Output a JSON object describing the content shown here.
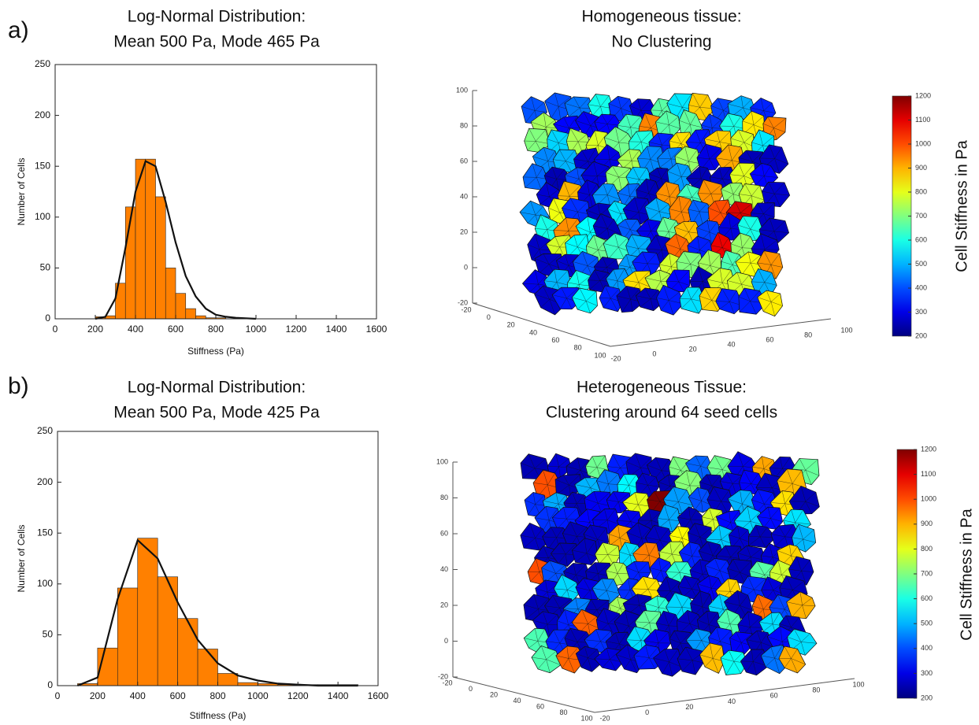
{
  "chart_data": [
    {
      "type": "histogram",
      "panel_label": "a)",
      "title": [
        "Log-Normal Distribution:",
        "Mean 500 Pa, Mode 465 Pa"
      ],
      "x_label": "Stiffness (Pa)",
      "y_label": "Number of Cells",
      "bins": [
        200,
        250,
        300,
        350,
        400,
        450,
        500,
        550,
        600,
        650,
        700,
        750,
        800,
        850,
        900,
        950,
        1000
      ],
      "values": [
        2,
        3,
        35,
        110,
        157,
        157,
        120,
        50,
        25,
        10,
        3,
        1,
        1,
        0,
        0,
        0
      ],
      "color": "#ff8000",
      "fit": {
        "x": [
          200,
          250,
          300,
          350,
          400,
          450,
          500,
          550,
          600,
          650,
          700,
          750,
          800,
          850,
          900,
          1000
        ],
        "y": [
          0,
          2,
          20,
          70,
          125,
          155,
          150,
          115,
          75,
          42,
          22,
          10,
          4,
          2,
          1,
          0
        ]
      },
      "xlim": [
        0,
        1600
      ],
      "xticks": [
        0,
        200,
        400,
        600,
        800,
        1000,
        1200,
        1400,
        1600
      ],
      "ylim": [
        0,
        250
      ],
      "yticks": [
        0,
        50,
        100,
        150,
        200,
        250
      ]
    },
    {
      "type": "mesh3d",
      "title": [
        "Homogeneous tissue:",
        "No Clustering"
      ],
      "colormap": "jet",
      "zlim": [
        -20,
        100
      ],
      "zticks": [
        -20,
        0,
        20,
        40,
        60,
        80,
        100
      ],
      "xlim": [
        -20,
        100
      ],
      "xticks": [
        -20,
        0,
        20,
        40,
        60,
        80,
        100
      ],
      "ylim": [
        -20,
        100
      ],
      "yticks": [
        -20,
        0,
        20,
        40,
        60,
        80,
        100
      ],
      "colorbar": {
        "label": "Cell Stiffness in Pa",
        "lim": [
          200,
          1200
        ],
        "ticks": [
          200,
          300,
          400,
          500,
          600,
          700,
          800,
          900,
          1000,
          1100,
          1200
        ]
      }
    },
    {
      "type": "histogram",
      "panel_label": "b)",
      "title": [
        "Log-Normal Distribution:",
        "Mean 500 Pa, Mode 425 Pa"
      ],
      "x_label": "Stiffness (Pa)",
      "y_label": "Number of Cells",
      "bins": [
        100,
        200,
        300,
        400,
        500,
        600,
        700,
        800,
        900,
        1000,
        1100,
        1200,
        1300,
        1400,
        1500
      ],
      "values": [
        2,
        37,
        96,
        145,
        107,
        66,
        36,
        12,
        3,
        2,
        1,
        1,
        1,
        1
      ],
      "color": "#ff8000",
      "fit": {
        "x": [
          100,
          200,
          300,
          400,
          500,
          600,
          700,
          800,
          900,
          1000,
          1100,
          1200,
          1300,
          1400,
          1500
        ],
        "y": [
          0,
          8,
          85,
          143,
          125,
          82,
          45,
          22,
          10,
          5,
          2,
          1,
          0,
          0,
          0
        ]
      },
      "xlim": [
        0,
        1600
      ],
      "xticks": [
        0,
        200,
        400,
        600,
        800,
        1000,
        1200,
        1400,
        1600
      ],
      "ylim": [
        0,
        250
      ],
      "yticks": [
        0,
        50,
        100,
        150,
        200,
        250
      ]
    },
    {
      "type": "mesh3d",
      "title": [
        "Heterogeneous Tissue:",
        "Clustering around 64 seed cells"
      ],
      "colormap": "jet",
      "zlim": [
        -20,
        100
      ],
      "zticks": [
        -20,
        0,
        20,
        40,
        60,
        80,
        100
      ],
      "xlim": [
        -20,
        100
      ],
      "xticks": [
        -20,
        0,
        20,
        40,
        60,
        80,
        100
      ],
      "ylim": [
        -20,
        100
      ],
      "yticks": [
        -20,
        0,
        20,
        40,
        60,
        80,
        100
      ],
      "colorbar": {
        "label": "Cell Stiffness in Pa",
        "lim": [
          200,
          1200
        ],
        "ticks": [
          200,
          300,
          400,
          500,
          600,
          700,
          800,
          900,
          1000,
          1100,
          1200
        ]
      }
    }
  ]
}
